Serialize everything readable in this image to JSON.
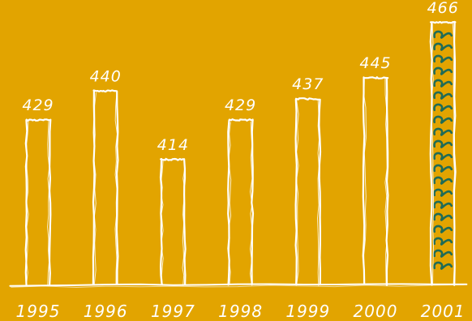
{
  "chart_data": {
    "type": "bar",
    "categories": [
      "1995",
      "1996",
      "1997",
      "1998",
      "1999",
      "2000",
      "2001"
    ],
    "values": [
      429,
      440,
      414,
      429,
      437,
      445,
      466
    ],
    "value_labels": [
      "429",
      "440",
      "414",
      "429",
      "437",
      "445",
      "466"
    ],
    "highlight_index": 6,
    "grid": false,
    "legend": "none",
    "colors": {
      "background": "#E2A400",
      "stroke": "#FFFFFF",
      "highlight_fill": "#1F6B56"
    }
  }
}
